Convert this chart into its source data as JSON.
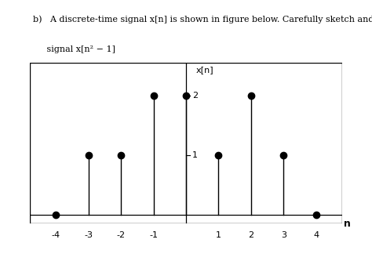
{
  "n_values": [
    -4,
    -3,
    -2,
    -1,
    0,
    1,
    2,
    3,
    4
  ],
  "x_values": [
    0,
    1,
    1,
    2,
    2,
    1,
    2,
    1,
    0
  ],
  "title": "x[n]",
  "xlabel": "n",
  "xlim": [
    -4.8,
    4.8
  ],
  "ylim": [
    -0.15,
    2.55
  ],
  "ytick_vals": [
    1,
    2
  ],
  "ytick_labels": [
    "1",
    "2"
  ],
  "xtick_vals": [
    -4,
    -3,
    -2,
    -1,
    1,
    2,
    3,
    4
  ],
  "xtick_labels": [
    "-4",
    "-3",
    "-2",
    "-1",
    "1",
    "2",
    "3",
    "4"
  ],
  "stem_color": "black",
  "marker_color": "black",
  "marker_size": 6,
  "linewidth": 1.0,
  "figsize": [
    4.74,
    3.24
  ],
  "dpi": 100,
  "header_text1": "b)   A discrete-time signal x[n] is shown in figure below. Carefully sketch and label the",
  "header_text2": "     signal x[n² − 1]",
  "bg_color": "white",
  "text_color": "black"
}
